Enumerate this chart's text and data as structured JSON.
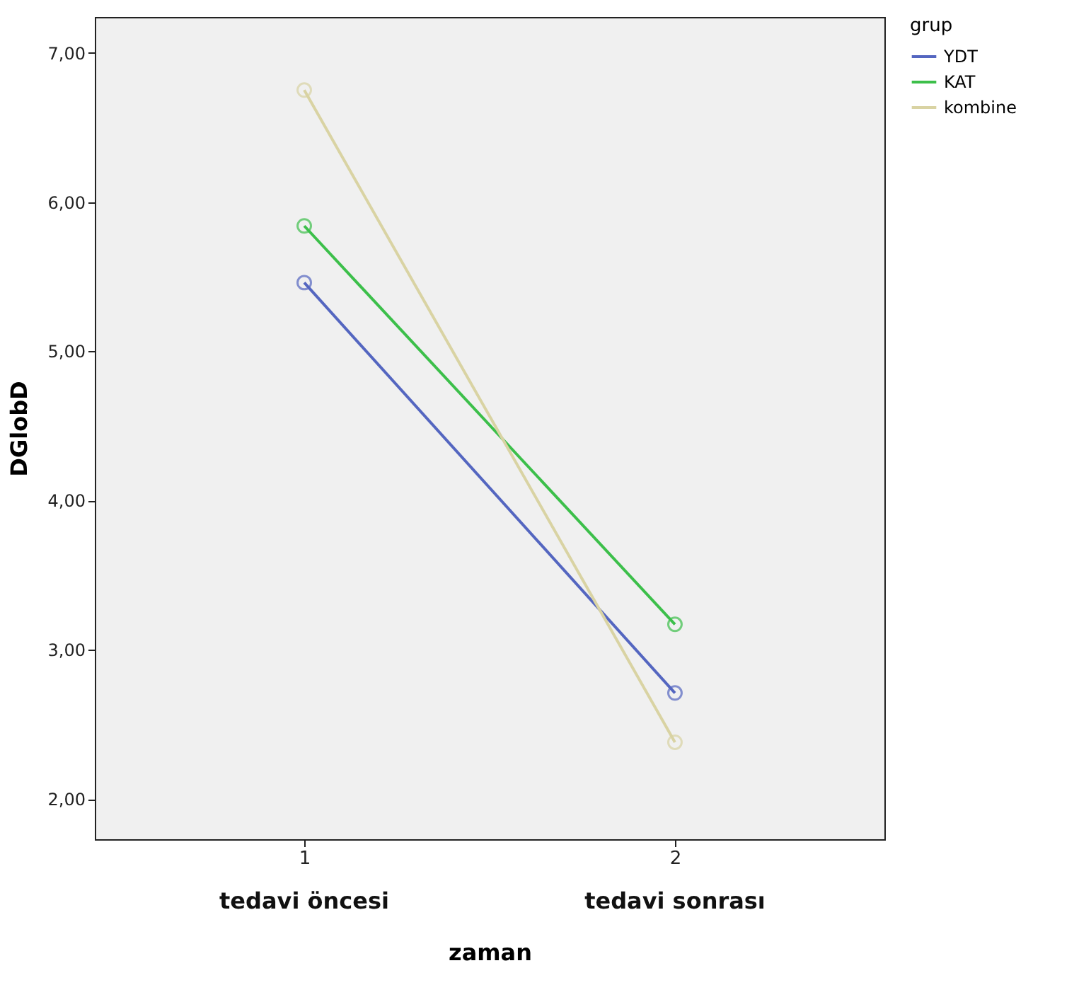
{
  "chart_data": {
    "type": "line",
    "xlabel": "zaman",
    "ylabel": "DGlobD",
    "legend_title": "grup",
    "categories": [
      "1",
      "2"
    ],
    "annotations": [
      "tedavi öncesi",
      "tedavi sonrası"
    ],
    "series": [
      {
        "name": "YDT",
        "color": "#5466c0",
        "values": [
          5.46,
          2.71
        ]
      },
      {
        "name": "KAT",
        "color": "#3cbf4a",
        "values": [
          5.84,
          3.17
        ]
      },
      {
        "name": "kombine",
        "color": "#d9d3a3",
        "values": [
          6.75,
          2.38
        ]
      }
    ],
    "ylim": [
      1.73,
      7.24
    ],
    "yticks": [
      {
        "value": 2,
        "label": "2,00"
      },
      {
        "value": 3,
        "label": "3,00"
      },
      {
        "value": 4,
        "label": "4,00"
      },
      {
        "value": 5,
        "label": "5,00"
      },
      {
        "value": 6,
        "label": "6,00"
      },
      {
        "value": 7,
        "label": "7,00"
      }
    ],
    "marker": "circle",
    "line_style": "solid",
    "grid": false,
    "legend": "top right"
  }
}
